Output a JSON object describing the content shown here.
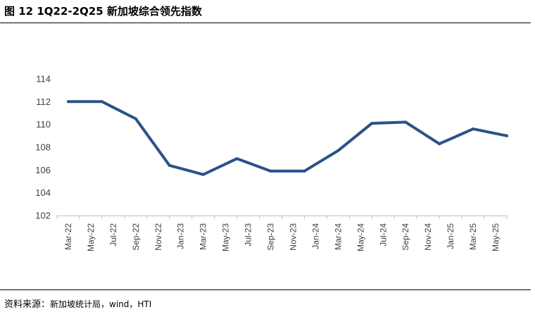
{
  "header": {
    "title": "图 12 1Q22-2Q25 新加坡综合领先指数"
  },
  "footer": {
    "source_label": "资料来源：",
    "source_text": "新加坡统计局，wind，HTI"
  },
  "chart_data": {
    "type": "line",
    "title": "",
    "xlabel": "",
    "ylabel": "",
    "ylim": [
      102,
      114
    ],
    "yticks": [
      102,
      104,
      106,
      108,
      110,
      112,
      114
    ],
    "x": [
      "Mar-22",
      "May-22",
      "Jul-22",
      "Sep-22",
      "Nov-22",
      "Jan-23",
      "Mar-23",
      "May-23",
      "Jul-23",
      "Sep-23",
      "Nov-23",
      "Jan-24",
      "Mar-24",
      "May-24",
      "Jul-24",
      "Sep-24",
      "Nov-24",
      "Jan-25",
      "Mar-25",
      "May-25"
    ],
    "series": [
      {
        "name": "",
        "color": "#2a5289",
        "points": [
          {
            "x": "Mar-22",
            "y": 112.0
          },
          {
            "x": "Jun-22",
            "y": 112.0
          },
          {
            "x": "Sep-22",
            "y": 110.5
          },
          {
            "x": "Dec-22",
            "y": 106.4
          },
          {
            "x": "Mar-23",
            "y": 105.6
          },
          {
            "x": "Jun-23",
            "y": 107.0
          },
          {
            "x": "Sep-23",
            "y": 105.9
          },
          {
            "x": "Dec-23",
            "y": 105.9
          },
          {
            "x": "Mar-24",
            "y": 107.7
          },
          {
            "x": "Jun-24",
            "y": 110.1
          },
          {
            "x": "Sep-24",
            "y": 110.2
          },
          {
            "x": "Dec-24",
            "y": 108.3
          },
          {
            "x": "Mar-25",
            "y": 109.6
          },
          {
            "x": "Jun-25",
            "y": 109.0
          }
        ]
      }
    ],
    "grid": false,
    "legend": "none",
    "axis_color": "#bfbfbf",
    "text_color": "#404040"
  }
}
